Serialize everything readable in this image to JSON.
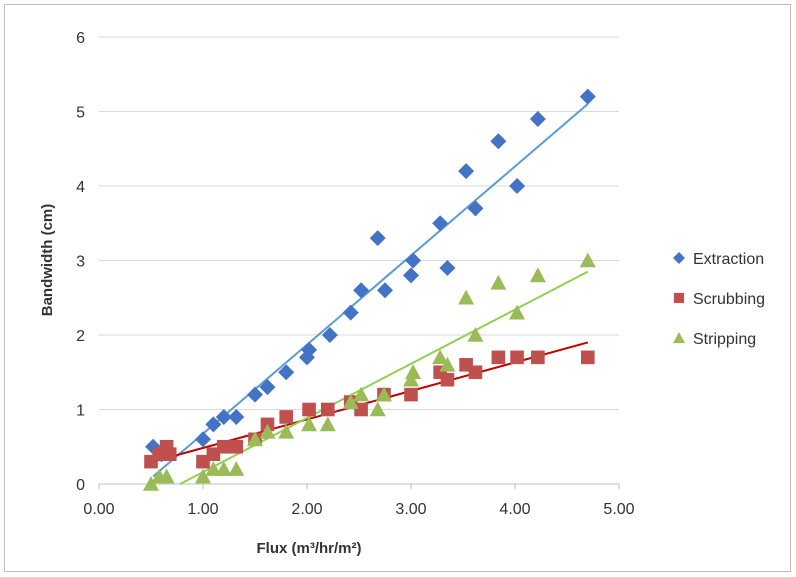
{
  "chart_data": {
    "type": "scatter",
    "title": "",
    "xlabel": "Flux (m³/hr/m²)",
    "ylabel": "Bandwidth (cm)",
    "xlim": [
      0,
      5
    ],
    "ylim": [
      0,
      6
    ],
    "x_ticks": [
      "0.00",
      "1.00",
      "2.00",
      "3.00",
      "4.00",
      "5.00"
    ],
    "y_ticks": [
      "0",
      "1",
      "2",
      "3",
      "4",
      "5",
      "6"
    ],
    "grid": "horizontal",
    "legend_position": "right",
    "trendlines": "linear",
    "series": [
      {
        "name": "Extraction",
        "marker": "diamond",
        "color": "#4472C4",
        "trend_color": "#5B9BD5",
        "points": [
          [
            0.52,
            0.5
          ],
          [
            0.6,
            0.4
          ],
          [
            1.0,
            0.6
          ],
          [
            1.1,
            0.8
          ],
          [
            1.2,
            0.9
          ],
          [
            1.32,
            0.9
          ],
          [
            1.5,
            1.2
          ],
          [
            1.62,
            1.3
          ],
          [
            1.8,
            1.5
          ],
          [
            2.0,
            1.7
          ],
          [
            2.02,
            1.8
          ],
          [
            2.22,
            2.0
          ],
          [
            2.42,
            2.3
          ],
          [
            2.52,
            2.6
          ],
          [
            2.68,
            3.3
          ],
          [
            2.75,
            2.6
          ],
          [
            3.0,
            2.8
          ],
          [
            3.02,
            3.0
          ],
          [
            3.28,
            3.5
          ],
          [
            3.35,
            2.9
          ],
          [
            3.53,
            4.2
          ],
          [
            3.62,
            3.7
          ],
          [
            3.84,
            4.6
          ],
          [
            4.02,
            4.0
          ],
          [
            4.22,
            4.9
          ],
          [
            4.7,
            5.2
          ]
        ],
        "trend": [
          [
            0.52,
            0.1
          ],
          [
            4.7,
            5.1
          ]
        ]
      },
      {
        "name": "Scrubbing",
        "marker": "square",
        "color": "#C0504D",
        "trend_color": "#C00000",
        "points": [
          [
            0.5,
            0.3
          ],
          [
            0.58,
            0.4
          ],
          [
            0.65,
            0.5
          ],
          [
            0.68,
            0.4
          ],
          [
            1.0,
            0.3
          ],
          [
            1.1,
            0.4
          ],
          [
            1.2,
            0.5
          ],
          [
            1.32,
            0.5
          ],
          [
            1.5,
            0.6
          ],
          [
            1.62,
            0.8
          ],
          [
            1.8,
            0.9
          ],
          [
            2.02,
            1.0
          ],
          [
            2.2,
            1.0
          ],
          [
            2.42,
            1.1
          ],
          [
            2.52,
            1.0
          ],
          [
            2.74,
            1.2
          ],
          [
            3.0,
            1.2
          ],
          [
            3.28,
            1.5
          ],
          [
            3.35,
            1.4
          ],
          [
            3.53,
            1.6
          ],
          [
            3.62,
            1.5
          ],
          [
            3.84,
            1.7
          ],
          [
            4.02,
            1.7
          ],
          [
            4.22,
            1.7
          ],
          [
            4.7,
            1.7
          ]
        ],
        "trend": [
          [
            0.52,
            0.3
          ],
          [
            4.7,
            1.9
          ]
        ]
      },
      {
        "name": "Stripping",
        "marker": "triangle",
        "color": "#9BBB59",
        "trend_color": "#92D050",
        "points": [
          [
            0.5,
            0.0
          ],
          [
            0.58,
            0.1
          ],
          [
            0.65,
            0.1
          ],
          [
            1.0,
            0.1
          ],
          [
            1.1,
            0.2
          ],
          [
            1.2,
            0.2
          ],
          [
            1.32,
            0.2
          ],
          [
            1.5,
            0.6
          ],
          [
            1.62,
            0.7
          ],
          [
            1.8,
            0.7
          ],
          [
            2.02,
            0.8
          ],
          [
            2.2,
            0.8
          ],
          [
            2.42,
            1.1
          ],
          [
            2.52,
            1.2
          ],
          [
            2.68,
            1.0
          ],
          [
            2.74,
            1.2
          ],
          [
            3.0,
            1.4
          ],
          [
            3.02,
            1.5
          ],
          [
            3.28,
            1.7
          ],
          [
            3.35,
            1.6
          ],
          [
            3.53,
            2.5
          ],
          [
            3.62,
            2.0
          ],
          [
            3.84,
            2.7
          ],
          [
            4.02,
            2.3
          ],
          [
            4.22,
            2.8
          ],
          [
            4.7,
            3.0
          ]
        ],
        "trend": [
          [
            0.78,
            0.0
          ],
          [
            4.7,
            2.85
          ]
        ]
      }
    ]
  }
}
